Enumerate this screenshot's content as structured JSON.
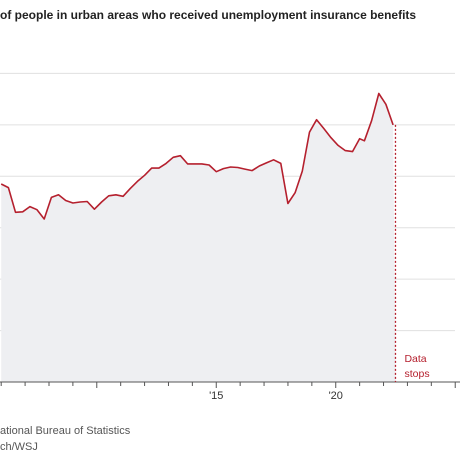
{
  "title": "of people in urban areas who received unemployment insurance benefits",
  "source_line_1": "ational Bureau of Statistics",
  "source_line_2": "ch/WSJ",
  "annotation": {
    "line1": "Data",
    "line2": "stops"
  },
  "colors": {
    "line": "#b5202e",
    "area": "#eeeff2",
    "grid": "#e0e0e0",
    "axis": "#555555"
  },
  "chart_data": {
    "type": "area",
    "title": "",
    "xlabel": "",
    "ylabel": "",
    "xlim": [
      2005.95,
      2025.2
    ],
    "ylim": [
      0,
      7
    ],
    "grid": true,
    "y_gridlines": [
      1,
      2,
      3,
      4,
      5,
      6
    ],
    "x_ticks": [
      {
        "x": 2015,
        "label": "'15"
      },
      {
        "x": 2020,
        "label": "'20"
      }
    ],
    "data_stops_x": 2022.5,
    "series": [
      {
        "x": [
          2006.0,
          2006.3,
          2006.6,
          2006.9,
          2007.2,
          2007.5,
          2007.8,
          2008.1,
          2008.4,
          2008.7,
          2009.0,
          2009.3,
          2009.6,
          2009.9,
          2010.2,
          2010.5,
          2010.8,
          2011.1,
          2011.4,
          2011.7,
          2012.0,
          2012.3,
          2012.6,
          2012.9,
          2013.2,
          2013.5,
          2013.8,
          2014.1,
          2014.4,
          2014.7,
          2015.0,
          2015.3,
          2015.6,
          2015.9,
          2016.2,
          2016.5,
          2016.8,
          2017.1,
          2017.4,
          2017.7,
          2018.0,
          2018.3,
          2018.6,
          2018.9,
          2019.2,
          2019.5,
          2019.8,
          2020.1,
          2020.4,
          2020.7,
          2021.0,
          2021.2,
          2021.5,
          2021.8,
          2022.1,
          2022.4
        ],
        "values": [
          3.85,
          3.78,
          3.3,
          3.31,
          3.41,
          3.35,
          3.17,
          3.59,
          3.64,
          3.53,
          3.48,
          3.5,
          3.51,
          3.36,
          3.5,
          3.62,
          3.64,
          3.61,
          3.76,
          3.9,
          4.02,
          4.16,
          4.16,
          4.25,
          4.37,
          4.4,
          4.24,
          4.24,
          4.24,
          4.22,
          4.09,
          4.15,
          4.18,
          4.17,
          4.14,
          4.11,
          4.2,
          4.26,
          4.32,
          4.25,
          3.47,
          3.68,
          4.1,
          4.86,
          5.1,
          4.93,
          4.75,
          4.6,
          4.5,
          4.48,
          4.73,
          4.69,
          5.08,
          5.61,
          5.4,
          5.0
        ]
      }
    ]
  }
}
